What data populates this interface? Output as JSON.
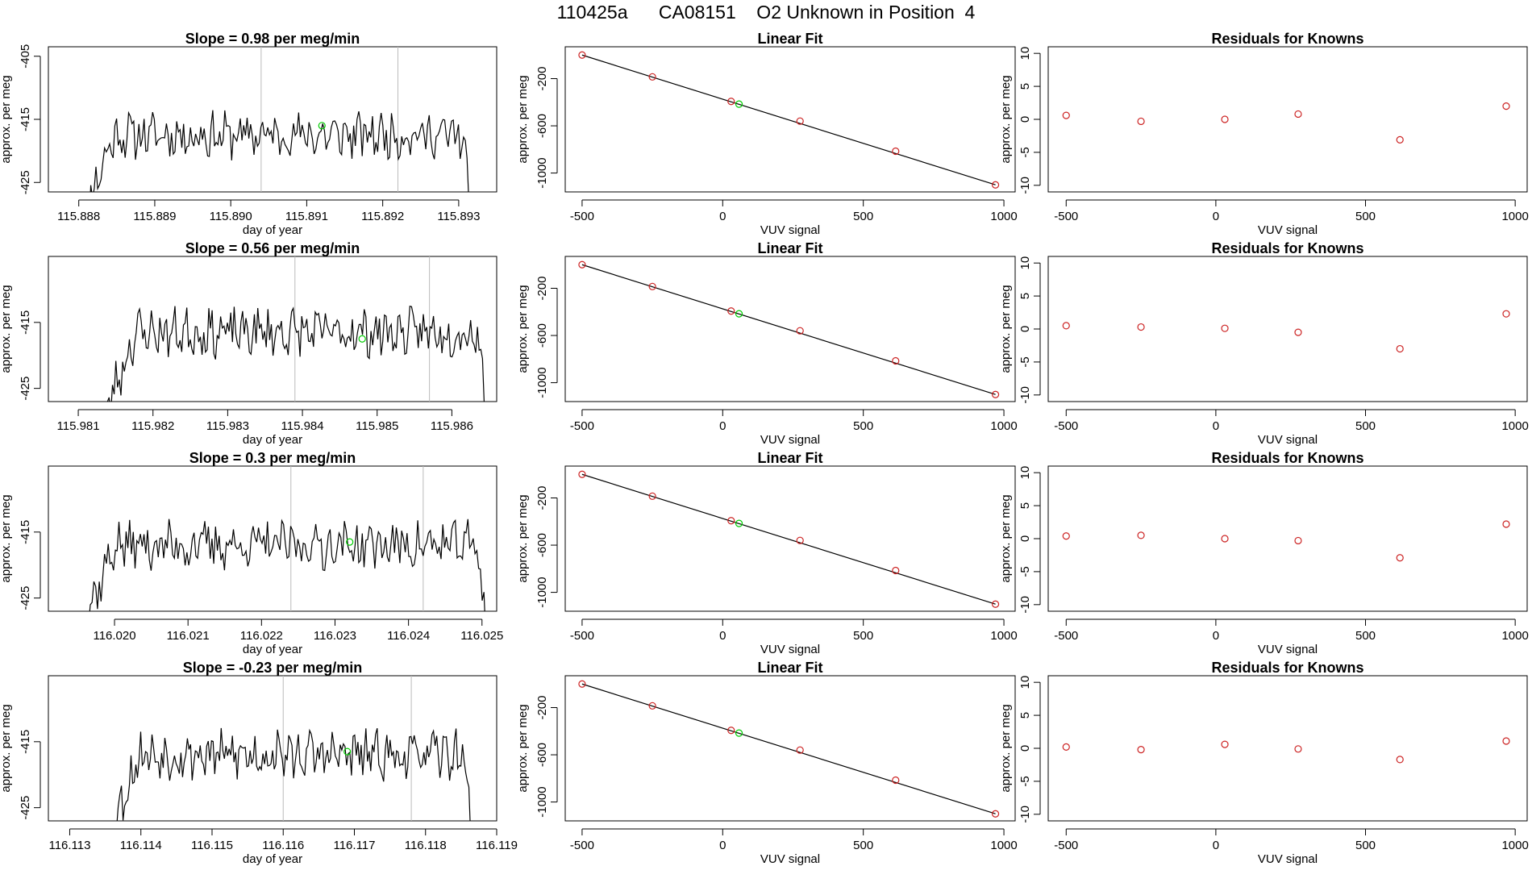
{
  "figure": {
    "title": "110425a      CA08151    O2 Unknown in Position  4"
  },
  "chart_data": [
    {
      "type": "line",
      "title": "Slope =  0.98  per meg/min",
      "xlabel": "day of year",
      "ylabel": "approx. per meg",
      "xlim": [
        115.8876,
        115.8935
      ],
      "ylim": [
        -426.5,
        -403.5
      ],
      "xticks": [
        115.888,
        115.889,
        115.89,
        115.891,
        115.892,
        115.893
      ],
      "xtick_labels": [
        "115.888",
        "115.889",
        "115.890",
        "115.891",
        "115.892",
        "115.893"
      ],
      "yticks": [
        -425,
        -415,
        -405
      ],
      "ytick_labels": [
        "-425",
        "-415",
        "-405"
      ],
      "x_start": 115.888,
      "x_end": 115.8932,
      "plateau": -417.5,
      "seed": 11,
      "vlines": [
        115.8904,
        115.8922
      ],
      "marker": {
        "x": 115.8912,
        "y": -416.0,
        "color": "#00cc00"
      }
    },
    {
      "type": "scatter",
      "title": "Linear Fit",
      "xlabel": "VUV signal",
      "ylabel": "approx. per meg",
      "xlim": [
        -560,
        1040
      ],
      "ylim": [
        -1160,
        70
      ],
      "xticks": [
        -500,
        0,
        500,
        1000
      ],
      "xtick_labels": [
        "-500",
        "0",
        "500",
        "1000"
      ],
      "yticks": [
        -1000,
        -600,
        -200
      ],
      "ytick_labels": [
        "-1000",
        "-600",
        "-200"
      ],
      "fit_line": {
        "x": [
          -500,
          970
        ],
        "y": [
          0,
          -1100
        ]
      },
      "points": {
        "x": [
          -500,
          -250,
          30,
          275,
          615,
          970
        ],
        "y": [
          0,
          -185,
          -393,
          -560,
          -815,
          -1100
        ],
        "color": "#cc2222"
      },
      "unknown": {
        "x": 58,
        "y": -416,
        "color": "#00cc00"
      }
    },
    {
      "type": "scatter",
      "title": "Residuals for Knowns",
      "xlabel": "VUV signal",
      "ylabel": "approx. per meg",
      "xlim": [
        -560,
        1040
      ],
      "ylim": [
        -11,
        11
      ],
      "xticks": [
        -500,
        0,
        500,
        1000
      ],
      "xtick_labels": [
        "-500",
        "0",
        "500",
        "1000"
      ],
      "yticks": [
        -10,
        -5,
        0,
        5,
        10
      ],
      "ytick_labels": [
        "-10",
        "-5",
        "0",
        "5",
        "10"
      ],
      "points": {
        "x": [
          -500,
          -250,
          30,
          275,
          615,
          970
        ],
        "y": [
          0.6,
          -0.3,
          0.0,
          0.8,
          -3.1,
          2.0
        ],
        "color": "#cc2222"
      }
    },
    {
      "type": "line",
      "title": "Slope =  0.56  per meg/min",
      "xlabel": "day of year",
      "ylabel": "approx. per meg",
      "xlim": [
        115.9806,
        115.9866
      ],
      "ylim": [
        -427,
        -405
      ],
      "xticks": [
        115.981,
        115.982,
        115.983,
        115.984,
        115.985,
        115.986
      ],
      "xtick_labels": [
        "115.981",
        "115.982",
        "115.983",
        "115.984",
        "115.985",
        "115.986"
      ],
      "yticks": [
        -425,
        -415
      ],
      "ytick_labels": [
        "-425",
        "-415"
      ],
      "x_start": 115.9813,
      "x_end": 115.9865,
      "plateau": -416.5,
      "seed": 23,
      "vlines": [
        115.9839,
        115.9857
      ],
      "marker": {
        "x": 115.9848,
        "y": -417.5,
        "color": "#00cc00"
      }
    },
    {
      "type": "scatter",
      "title": "Linear Fit",
      "xlabel": "VUV signal",
      "ylabel": "approx. per meg",
      "xlim": [
        -560,
        1040
      ],
      "ylim": [
        -1160,
        70
      ],
      "xticks": [
        -500,
        0,
        500,
        1000
      ],
      "xtick_labels": [
        "-500",
        "0",
        "500",
        "1000"
      ],
      "yticks": [
        -1000,
        -600,
        -200
      ],
      "ytick_labels": [
        "-1000",
        "-600",
        "-200"
      ],
      "fit_line": {
        "x": [
          -500,
          970
        ],
        "y": [
          0,
          -1100
        ]
      },
      "points": {
        "x": [
          -500,
          -250,
          30,
          275,
          615,
          970
        ],
        "y": [
          0,
          -185,
          -393,
          -560,
          -815,
          -1100
        ],
        "color": "#cc2222"
      },
      "unknown": {
        "x": 58,
        "y": -416,
        "color": "#00cc00"
      }
    },
    {
      "type": "scatter",
      "title": "Residuals for Knowns",
      "xlabel": "VUV signal",
      "ylabel": "approx. per meg",
      "xlim": [
        -560,
        1040
      ],
      "ylim": [
        -11,
        11
      ],
      "xticks": [
        -500,
        0,
        500,
        1000
      ],
      "xtick_labels": [
        "-500",
        "0",
        "500",
        "1000"
      ],
      "yticks": [
        -10,
        -5,
        0,
        5,
        10
      ],
      "ytick_labels": [
        "-10",
        "-5",
        "0",
        "5",
        "10"
      ],
      "points": {
        "x": [
          -500,
          -250,
          30,
          275,
          615,
          970
        ],
        "y": [
          0.5,
          0.3,
          0.1,
          -0.5,
          -3.0,
          2.3
        ],
        "color": "#cc2222"
      }
    },
    {
      "type": "line",
      "title": "Slope =  0.3  per meg/min",
      "xlabel": "day of year",
      "ylabel": "approx. per meg",
      "xlim": [
        116.0191,
        116.0252
      ],
      "ylim": [
        -427,
        -405
      ],
      "xticks": [
        116.02,
        116.021,
        116.022,
        116.023,
        116.024,
        116.025
      ],
      "xtick_labels": [
        "116.020",
        "116.021",
        "116.022",
        "116.023",
        "116.024",
        "116.025"
      ],
      "yticks": [
        -425,
        -415
      ],
      "ytick_labels": [
        "-425",
        "-415"
      ],
      "x_start": 116.0195,
      "x_end": 116.0251,
      "plateau": -417.0,
      "seed": 37,
      "vlines": [
        116.0224,
        116.0242
      ],
      "marker": {
        "x": 116.0232,
        "y": -416.5,
        "color": "#00cc00"
      }
    },
    {
      "type": "scatter",
      "title": "Linear Fit",
      "xlabel": "VUV signal",
      "ylabel": "approx. per meg",
      "xlim": [
        -560,
        1040
      ],
      "ylim": [
        -1160,
        70
      ],
      "xticks": [
        -500,
        0,
        500,
        1000
      ],
      "xtick_labels": [
        "-500",
        "0",
        "500",
        "1000"
      ],
      "yticks": [
        -1000,
        -600,
        -200
      ],
      "ytick_labels": [
        "-1000",
        "-600",
        "-200"
      ],
      "fit_line": {
        "x": [
          -500,
          970
        ],
        "y": [
          0,
          -1100
        ]
      },
      "points": {
        "x": [
          -500,
          -250,
          30,
          275,
          615,
          970
        ],
        "y": [
          0,
          -185,
          -393,
          -560,
          -815,
          -1100
        ],
        "color": "#cc2222"
      },
      "unknown": {
        "x": 58,
        "y": -416,
        "color": "#00cc00"
      }
    },
    {
      "type": "scatter",
      "title": "Residuals for Knowns",
      "xlabel": "VUV signal",
      "ylabel": "approx. per meg",
      "xlim": [
        -560,
        1040
      ],
      "ylim": [
        -11,
        11
      ],
      "xticks": [
        -500,
        0,
        500,
        1000
      ],
      "xtick_labels": [
        "-500",
        "0",
        "500",
        "1000"
      ],
      "yticks": [
        -10,
        -5,
        0,
        5,
        10
      ],
      "ytick_labels": [
        "-10",
        "-5",
        "0",
        "5",
        "10"
      ],
      "points": {
        "x": [
          -500,
          -250,
          30,
          275,
          615,
          970
        ],
        "y": [
          0.4,
          0.5,
          0.0,
          -0.3,
          -2.9,
          2.2
        ],
        "color": "#cc2222"
      }
    },
    {
      "type": "line",
      "title": "Slope =  -0.23  per meg/min",
      "xlabel": "day of year",
      "ylabel": "approx. per meg",
      "xlim": [
        116.1127,
        116.119
      ],
      "ylim": [
        -427,
        -405
      ],
      "xticks": [
        116.113,
        116.114,
        116.115,
        116.116,
        116.117,
        116.118,
        116.119
      ],
      "xtick_labels": [
        "116.113",
        "116.114",
        "116.115",
        "116.116",
        "116.117",
        "116.118",
        "116.119"
      ],
      "yticks": [
        -425,
        -415
      ],
      "ytick_labels": [
        "-425",
        "-415"
      ],
      "x_start": 116.1135,
      "x_end": 116.1187,
      "plateau": -417.0,
      "seed": 53,
      "vlines": [
        116.116,
        116.1178
      ],
      "marker": {
        "x": 116.1169,
        "y": -416.5,
        "color": "#00cc00"
      }
    },
    {
      "type": "scatter",
      "title": "Linear Fit",
      "xlabel": "VUV signal",
      "ylabel": "approx. per meg",
      "xlim": [
        -560,
        1040
      ],
      "ylim": [
        -1160,
        70
      ],
      "xticks": [
        -500,
        0,
        500,
        1000
      ],
      "xtick_labels": [
        "-500",
        "0",
        "500",
        "1000"
      ],
      "yticks": [
        -1000,
        -600,
        -200
      ],
      "ytick_labels": [
        "-1000",
        "-600",
        "-200"
      ],
      "fit_line": {
        "x": [
          -500,
          970
        ],
        "y": [
          0,
          -1100
        ]
      },
      "points": {
        "x": [
          -500,
          -250,
          30,
          275,
          615,
          970
        ],
        "y": [
          0,
          -185,
          -393,
          -560,
          -815,
          -1100
        ],
        "color": "#cc2222"
      },
      "unknown": {
        "x": 58,
        "y": -416,
        "color": "#00cc00"
      }
    },
    {
      "type": "scatter",
      "title": "Residuals for Knowns",
      "xlabel": "VUV signal",
      "ylabel": "approx. per meg",
      "xlim": [
        -560,
        1040
      ],
      "ylim": [
        -11,
        11
      ],
      "xticks": [
        -500,
        0,
        500,
        1000
      ],
      "xtick_labels": [
        "-500",
        "0",
        "500",
        "1000"
      ],
      "yticks": [
        -10,
        -5,
        0,
        5,
        10
      ],
      "ytick_labels": [
        "-10",
        "-5",
        "0",
        "5",
        "10"
      ],
      "points": {
        "x": [
          -500,
          -250,
          30,
          275,
          615,
          970
        ],
        "y": [
          0.2,
          -0.2,
          0.6,
          -0.1,
          -1.7,
          1.1
        ],
        "color": "#cc2222"
      }
    }
  ]
}
